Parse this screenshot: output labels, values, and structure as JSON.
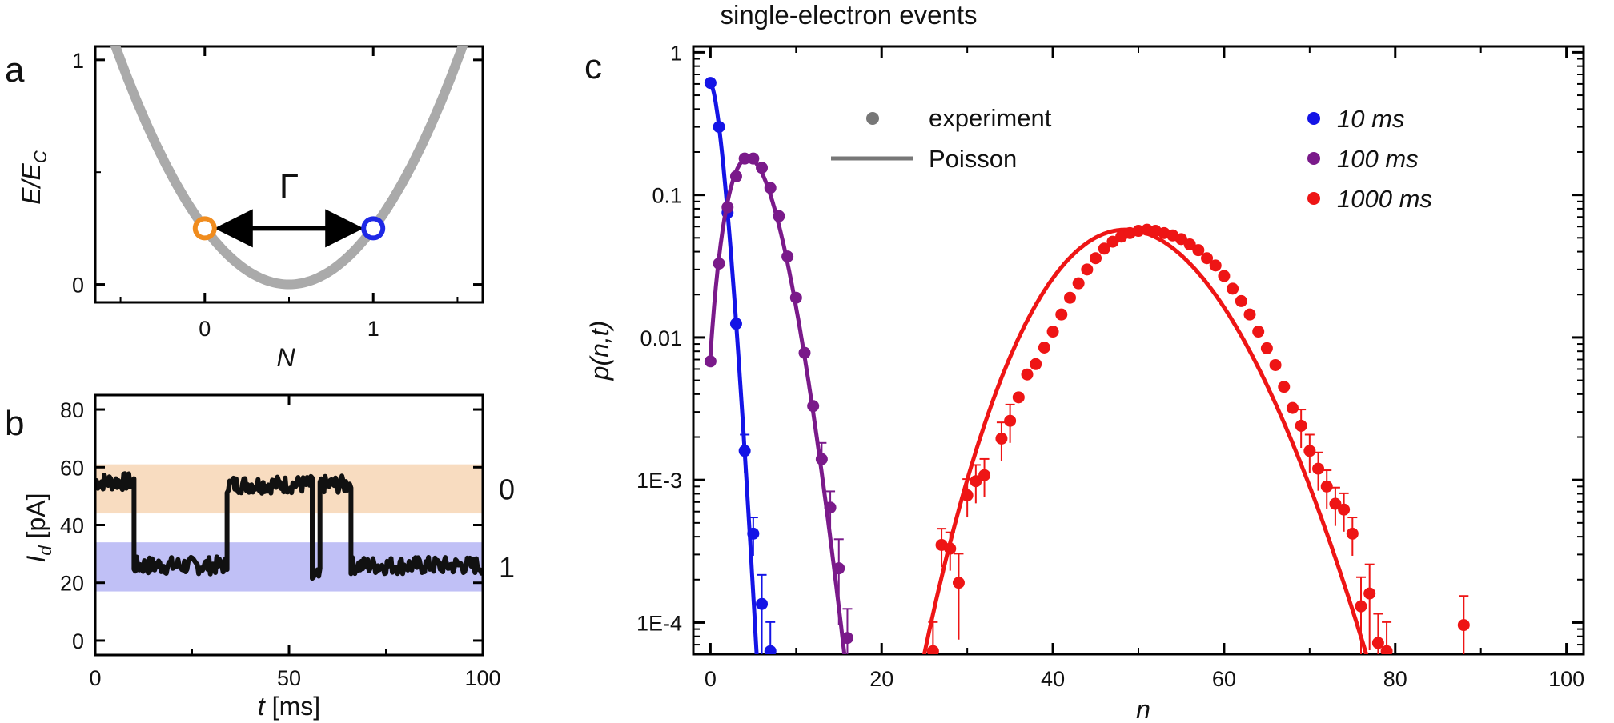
{
  "chart_data": [
    {
      "panel": "a",
      "type": "line",
      "xlabel": "N",
      "ylabel_main": "E/E",
      "ylabel_sub": "C",
      "xlim": [
        -0.65,
        1.65
      ],
      "ylim": [
        -0.08,
        1.06
      ],
      "x_ticks": [
        "0",
        "1"
      ],
      "y_ticks": [
        "0",
        "1"
      ],
      "parabola": {
        "center": 0.5,
        "min": 0,
        "color": "#aaaaaa"
      },
      "states": [
        {
          "x": 0,
          "y": 0.25,
          "color": "#f08c1e"
        },
        {
          "x": 1,
          "y": 0.25,
          "color": "#1e28e6"
        }
      ],
      "arrow_label": "Γ"
    },
    {
      "panel": "b",
      "type": "line",
      "xlabel": "t [ms]",
      "ylabel_main": "I",
      "ylabel_sub": "d",
      "ylabel_rest": " [pA]",
      "xlim": [
        0,
        100
      ],
      "ylim": [
        -5,
        85
      ],
      "x_ticks": [
        "0",
        "50",
        "100"
      ],
      "y_ticks": [
        "0",
        "20",
        "40",
        "60",
        "80"
      ],
      "bands": [
        {
          "label": "0",
          "ymin": 44,
          "ymax": 61,
          "color": "#f8dcc0",
          "label_color": "#f08c1e"
        },
        {
          "label": "1",
          "ymin": 17,
          "ymax": 34,
          "color": "#c0c0f6",
          "label_color": "#1e28e6"
        }
      ],
      "trace": {
        "color": "#111111",
        "segments": [
          {
            "t0": 0,
            "t1": 10,
            "level": 55
          },
          {
            "t0": 10,
            "t1": 34,
            "level": 26
          },
          {
            "t0": 34,
            "t1": 56,
            "level": 54
          },
          {
            "t0": 56,
            "t1": 58,
            "level": 22
          },
          {
            "t0": 58,
            "t1": 66,
            "level": 54
          },
          {
            "t0": 66,
            "t1": 100,
            "level": 26
          }
        ]
      }
    },
    {
      "panel": "c",
      "type": "scatter",
      "title": "single-electron events",
      "xlabel": "n",
      "ylabel": "p(n,t)",
      "xlim": [
        -2,
        102
      ],
      "ylim_log": [
        6e-05,
        1.1
      ],
      "y_scale": "log",
      "x_ticks": [
        "0",
        "20",
        "40",
        "60",
        "80",
        "100"
      ],
      "y_ticks": [
        {
          "v": 1,
          "label": "1"
        },
        {
          "v": 0.1,
          "label": "0.1"
        },
        {
          "v": 0.01,
          "label": "0.01"
        },
        {
          "v": 0.001,
          "label": "1E-3"
        },
        {
          "v": 0.0001,
          "label": "1E-4"
        }
      ],
      "legend_style": [
        {
          "kind": "marker",
          "label": "experiment"
        },
        {
          "kind": "line",
          "label": "Poisson"
        }
      ],
      "series": [
        {
          "name": "10 ms",
          "color": "#1414e6",
          "mean": 0.5,
          "points": [
            [
              0,
              0.61
            ],
            [
              1,
              0.3
            ],
            [
              2,
              0.075
            ],
            [
              3,
              0.0125
            ],
            [
              4,
              0.0016
            ],
            [
              5,
              0.00042
            ],
            [
              6,
              0.000135
            ],
            [
              7,
              6.3e-05
            ]
          ]
        },
        {
          "name": "100 ms",
          "color": "#7a1a8a",
          "mean": 4.9,
          "points": [
            [
              0,
              0.0068
            ],
            [
              1,
              0.033
            ],
            [
              2,
              0.082
            ],
            [
              3,
              0.135
            ],
            [
              4,
              0.18
            ],
            [
              5,
              0.18
            ],
            [
              6,
              0.155
            ],
            [
              7,
              0.112
            ],
            [
              8,
              0.071
            ],
            [
              9,
              0.037
            ],
            [
              10,
              0.019
            ],
            [
              11,
              0.0078
            ],
            [
              12,
              0.0033
            ],
            [
              13,
              0.0014
            ],
            [
              14,
              0.00064
            ],
            [
              15,
              0.00024
            ],
            [
              16,
              7.8e-05
            ]
          ]
        },
        {
          "name": "1000 ms",
          "color": "#ee1515",
          "mean": 49,
          "points": [
            [
              26,
              6.3e-05
            ],
            [
              27,
              0.00035
            ],
            [
              28,
              0.00033
            ],
            [
              29,
              0.00019
            ],
            [
              30,
              0.00078
            ],
            [
              31,
              0.00098
            ],
            [
              32,
              0.00108
            ],
            [
              34,
              0.00195
            ],
            [
              35,
              0.0026
            ],
            [
              36,
              0.0038
            ],
            [
              37,
              0.0055
            ],
            [
              38,
              0.0065
            ],
            [
              39,
              0.0085
            ],
            [
              40,
              0.011
            ],
            [
              41,
              0.0145
            ],
            [
              42,
              0.019
            ],
            [
              43,
              0.024
            ],
            [
              44,
              0.03
            ],
            [
              45,
              0.036
            ],
            [
              46,
              0.042
            ],
            [
              47,
              0.047
            ],
            [
              48,
              0.051
            ],
            [
              49,
              0.054
            ],
            [
              50,
              0.056
            ],
            [
              51,
              0.057
            ],
            [
              52,
              0.056
            ],
            [
              53,
              0.054
            ],
            [
              54,
              0.052
            ],
            [
              55,
              0.049
            ],
            [
              56,
              0.045
            ],
            [
              57,
              0.041
            ],
            [
              58,
              0.036
            ],
            [
              59,
              0.032
            ],
            [
              60,
              0.027
            ],
            [
              61,
              0.022
            ],
            [
              62,
              0.018
            ],
            [
              63,
              0.0145
            ],
            [
              64,
              0.011
            ],
            [
              65,
              0.0084
            ],
            [
              66,
              0.0064
            ],
            [
              67,
              0.0045
            ],
            [
              68,
              0.0032
            ],
            [
              69,
              0.0024
            ],
            [
              70,
              0.0016
            ],
            [
              71,
              0.0012
            ],
            [
              72,
              0.0009
            ],
            [
              73,
              0.00068
            ],
            [
              74,
              0.00062
            ],
            [
              75,
              0.00042
            ],
            [
              76,
              0.00013
            ],
            [
              77,
              0.00016
            ],
            [
              78,
              7.2e-05
            ],
            [
              79,
              6.3e-05
            ],
            [
              88,
              9.6e-05
            ]
          ]
        }
      ]
    }
  ],
  "panels": {
    "a_label": "a",
    "b_label": "b",
    "c_label": "c"
  }
}
